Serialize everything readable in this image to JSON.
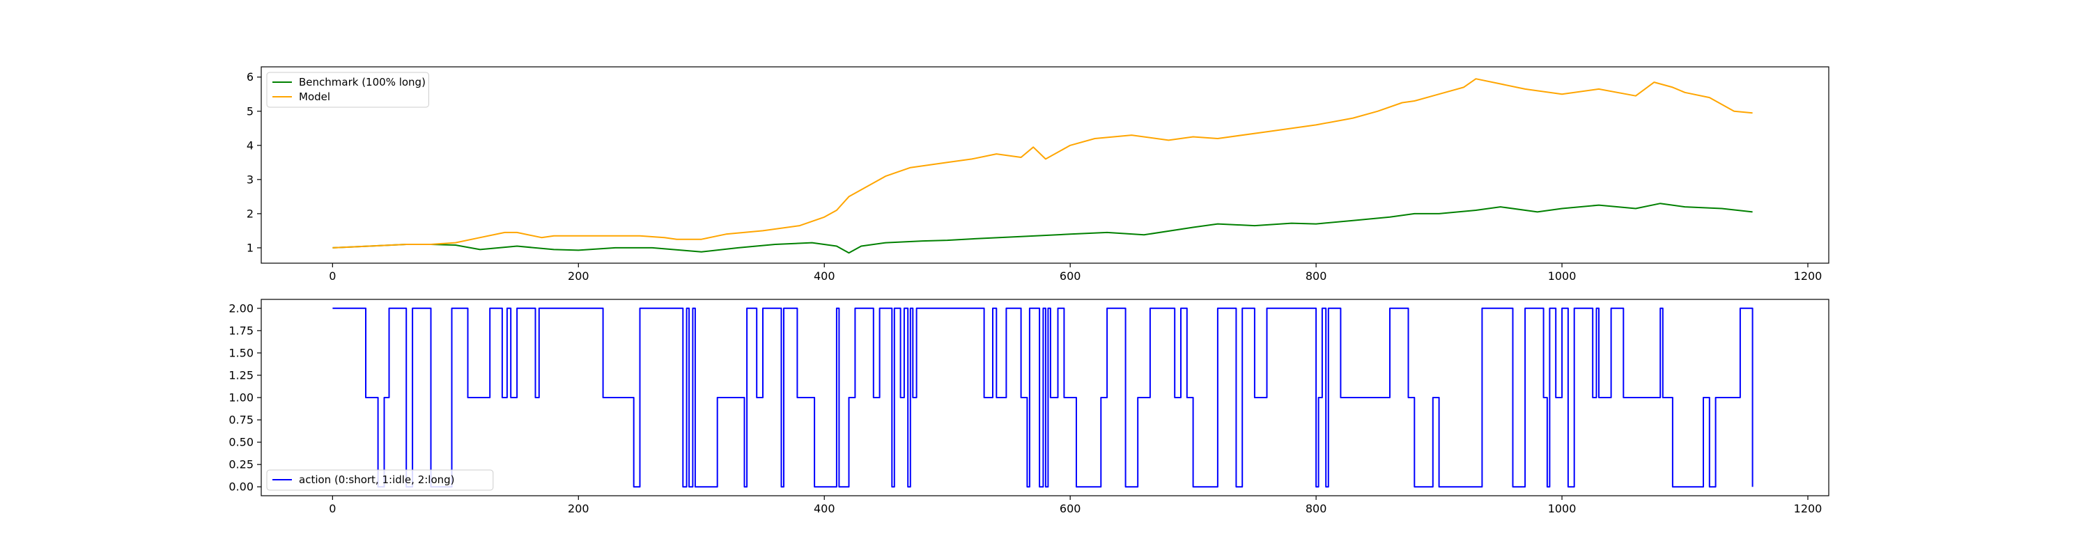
{
  "chart_data": [
    {
      "type": "line",
      "title": "",
      "xlabel": "",
      "ylabel": "",
      "xlim": [
        -58,
        1217
      ],
      "ylim": [
        0.55,
        6.3
      ],
      "xticks": [
        0,
        200,
        400,
        600,
        800,
        1000,
        1200
      ],
      "yticks": [
        1,
        2,
        3,
        4,
        5,
        6
      ],
      "grid": false,
      "legend": "upper left",
      "series": [
        {
          "name": "Benchmark (100% long)",
          "color": "#008000",
          "x": [
            0,
            30,
            60,
            80,
            100,
            120,
            150,
            180,
            200,
            230,
            260,
            300,
            330,
            360,
            390,
            410,
            420,
            430,
            450,
            480,
            500,
            530,
            560,
            600,
            630,
            660,
            700,
            720,
            750,
            780,
            800,
            830,
            860,
            880,
            900,
            930,
            950,
            980,
            1000,
            1030,
            1060,
            1080,
            1100,
            1130,
            1155
          ],
          "y": [
            1.0,
            1.05,
            1.1,
            1.1,
            1.08,
            0.95,
            1.05,
            0.95,
            0.93,
            1.0,
            1.0,
            0.88,
            1.0,
            1.1,
            1.15,
            1.05,
            0.85,
            1.05,
            1.15,
            1.2,
            1.22,
            1.28,
            1.33,
            1.4,
            1.45,
            1.38,
            1.6,
            1.7,
            1.65,
            1.72,
            1.7,
            1.8,
            1.9,
            2.0,
            2.0,
            2.1,
            2.2,
            2.05,
            2.15,
            2.25,
            2.15,
            2.3,
            2.2,
            2.15,
            2.05
          ]
        },
        {
          "name": "Model",
          "color": "#ffa500",
          "x": [
            0,
            30,
            60,
            80,
            100,
            120,
            140,
            150,
            170,
            180,
            200,
            250,
            270,
            280,
            300,
            320,
            350,
            380,
            400,
            410,
            420,
            440,
            450,
            470,
            500,
            520,
            540,
            560,
            570,
            580,
            600,
            620,
            650,
            680,
            700,
            720,
            760,
            800,
            830,
            850,
            870,
            880,
            900,
            920,
            930,
            950,
            970,
            1000,
            1030,
            1060,
            1075,
            1090,
            1100,
            1120,
            1140,
            1155
          ],
          "y": [
            1.0,
            1.05,
            1.1,
            1.1,
            1.15,
            1.3,
            1.45,
            1.45,
            1.3,
            1.35,
            1.35,
            1.35,
            1.3,
            1.25,
            1.25,
            1.4,
            1.5,
            1.65,
            1.9,
            2.1,
            2.5,
            2.9,
            3.1,
            3.35,
            3.5,
            3.6,
            3.75,
            3.65,
            3.95,
            3.6,
            4.0,
            4.2,
            4.3,
            4.15,
            4.25,
            4.2,
            4.4,
            4.6,
            4.8,
            5.0,
            5.25,
            5.3,
            5.5,
            5.7,
            5.95,
            5.8,
            5.65,
            5.5,
            5.65,
            5.45,
            5.85,
            5.7,
            5.55,
            5.4,
            5.0,
            4.95
          ]
        }
      ]
    },
    {
      "type": "line",
      "step": true,
      "title": "",
      "xlabel": "",
      "ylabel": "",
      "xlim": [
        -58,
        1217
      ],
      "ylim": [
        -0.1,
        2.1
      ],
      "xticks": [
        0,
        200,
        400,
        600,
        800,
        1000,
        1200
      ],
      "yticks": [
        0.0,
        0.25,
        0.5,
        0.75,
        1.0,
        1.25,
        1.5,
        1.75,
        2.0
      ],
      "ytick_labels": [
        "0.00",
        "0.25",
        "0.50",
        "0.75",
        "1.00",
        "1.25",
        "1.50",
        "1.75",
        "2.00"
      ],
      "grid": false,
      "legend": "lower left",
      "series": [
        {
          "name": "action (0:short, 1:idle, 2:long)",
          "color": "#0000ff",
          "x": [
            0,
            27,
            37,
            42,
            46,
            48,
            55,
            60,
            65,
            72,
            80,
            92,
            97,
            110,
            125,
            128,
            138,
            142,
            145,
            150,
            162,
            165,
            168,
            175,
            180,
            220,
            245,
            247,
            250,
            253,
            260,
            285,
            288,
            290,
            293,
            295,
            310,
            313,
            320,
            335,
            337,
            340,
            345,
            350,
            365,
            367,
            370,
            378,
            392,
            395,
            410,
            412,
            420,
            425,
            430,
            440,
            445,
            455,
            457,
            462,
            465,
            468,
            470,
            472,
            475,
            530,
            535,
            537,
            540,
            545,
            548,
            560,
            565,
            567,
            575,
            578,
            580,
            582,
            584,
            590,
            595,
            598,
            605,
            610,
            625,
            630,
            640,
            645,
            650,
            655,
            660,
            665,
            685,
            690,
            695,
            700,
            715,
            720,
            735,
            740,
            750,
            760,
            780,
            800,
            802,
            805,
            808,
            810,
            820,
            860,
            875,
            880,
            890,
            895,
            900,
            935,
            960,
            970,
            985,
            988,
            990,
            995,
            1000,
            1005,
            1010,
            1025,
            1028,
            1030,
            1040,
            1050,
            1080,
            1082,
            1090,
            1100,
            1115,
            1120,
            1125,
            1145,
            1155
          ],
          "y": [
            2,
            1,
            0,
            1,
            2,
            2,
            2,
            0,
            2,
            2,
            0,
            0,
            2,
            1,
            1,
            2,
            1,
            2,
            1,
            2,
            2,
            1,
            2,
            2,
            2,
            1,
            0,
            0,
            2,
            2,
            2,
            0,
            2,
            0,
            2,
            0,
            0,
            1,
            1,
            0,
            2,
            2,
            1,
            2,
            0,
            2,
            2,
            1,
            0,
            0,
            2,
            0,
            1,
            2,
            2,
            1,
            2,
            0,
            2,
            1,
            2,
            0,
            2,
            1,
            2,
            1,
            1,
            2,
            1,
            1,
            2,
            1,
            0,
            2,
            0,
            2,
            0,
            2,
            1,
            2,
            1,
            1,
            0,
            0,
            1,
            2,
            2,
            0,
            0,
            1,
            1,
            2,
            1,
            2,
            1,
            0,
            0,
            2,
            0,
            2,
            1,
            2,
            2,
            0,
            1,
            2,
            0,
            2,
            1,
            2,
            1,
            0,
            0,
            1,
            0,
            2,
            0,
            2,
            1,
            0,
            2,
            1,
            2,
            0,
            2,
            1,
            2,
            1,
            2,
            1,
            2,
            1,
            0,
            0,
            1,
            0,
            1,
            2,
            0
          ]
        }
      ]
    }
  ]
}
